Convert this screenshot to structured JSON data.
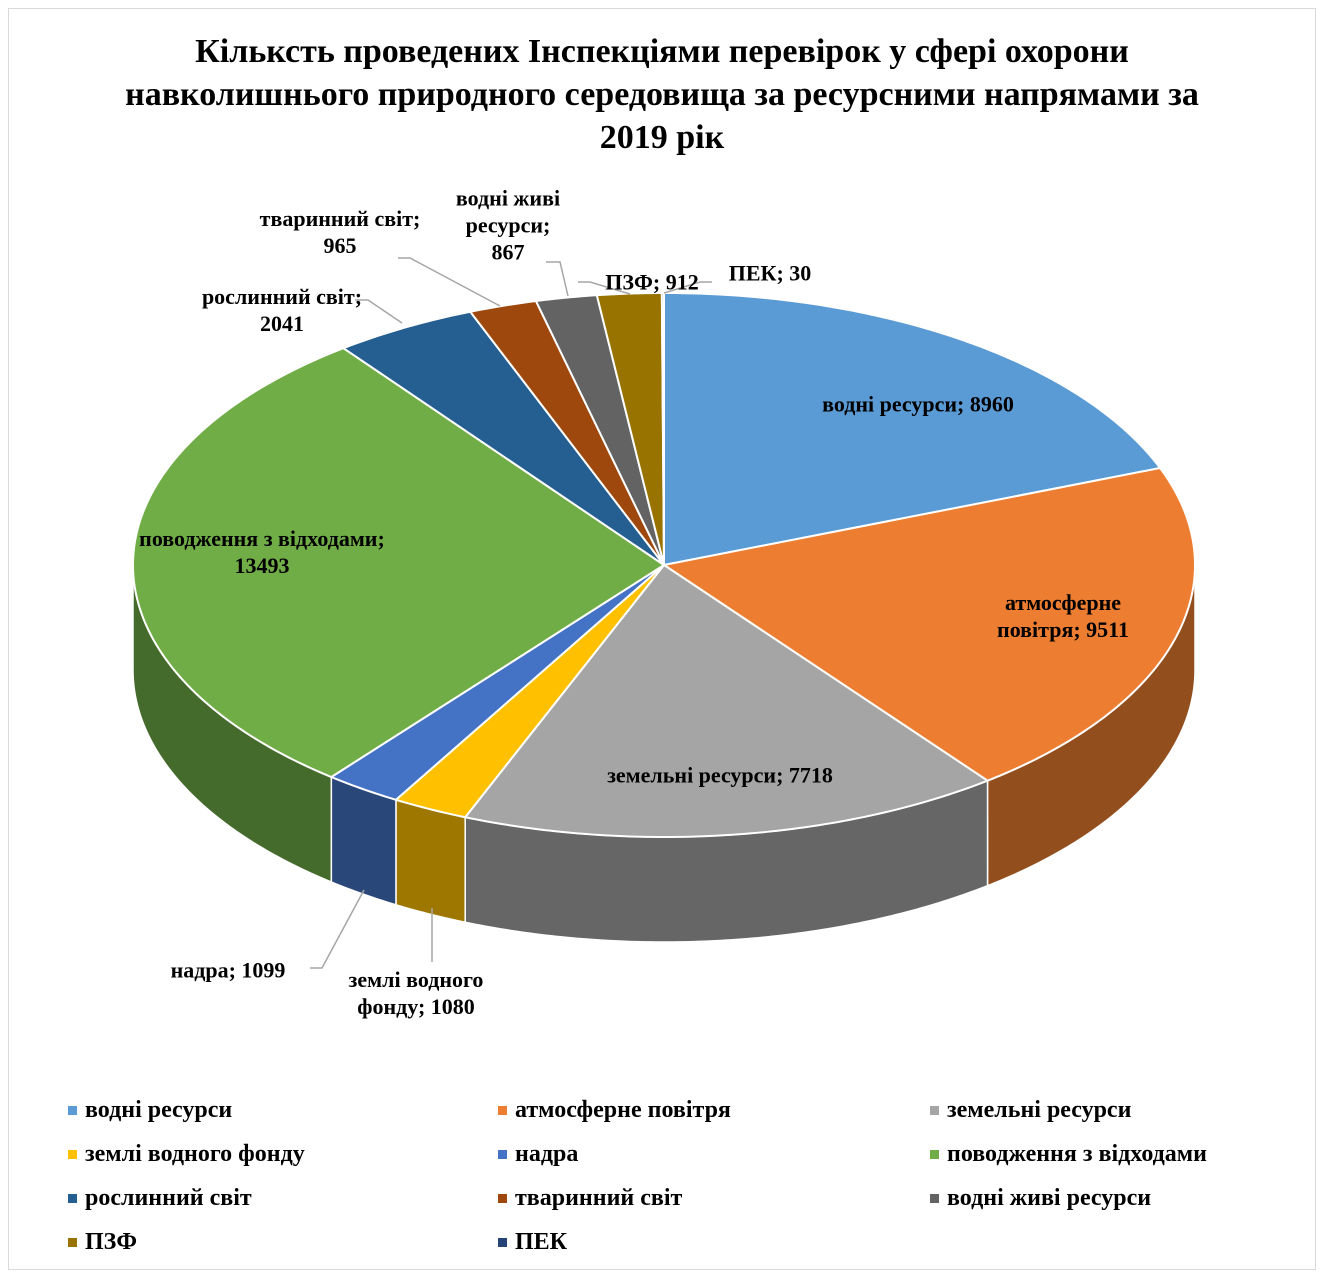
{
  "chart_data": {
    "type": "pie3d",
    "title": "Кільксть проведених Інспекціями перевірок у сфері охорони навколишнього природного середовища за ресурсними напрямами за 2019 рік",
    "categories": [
      "водні ресурси",
      "атмосферне повітря",
      "земельні ресурси",
      "землі водного фонду",
      "надра",
      "поводження з відходами",
      "рослинний світ",
      "тваринний світ",
      "водні живі ресурси",
      "ПЗФ",
      "ПЕК"
    ],
    "values": [
      8960,
      9511,
      7718,
      1080,
      1099,
      13493,
      2041,
      965,
      867,
      912,
      30
    ],
    "value_labels": [
      "водні ресурси; 8960",
      "атмосферне повітря; 9511",
      "земельні ресурси; 7718",
      "землі водного фонду; 1080",
      "надра; 1099",
      "поводження з відходами; 13493",
      "рослинний світ; 2041",
      "тваринний світ; 965",
      "водні живі ресурси; 867",
      "ПЗФ; 912",
      "ПЕК; 30"
    ],
    "colors": [
      "#5b9bd5",
      "#ed7d31",
      "#a5a5a5",
      "#ffc000",
      "#4472c4",
      "#70ad47",
      "#255e91",
      "#9e480e",
      "#636363",
      "#997300",
      "#264478"
    ],
    "legend": "bottom"
  }
}
